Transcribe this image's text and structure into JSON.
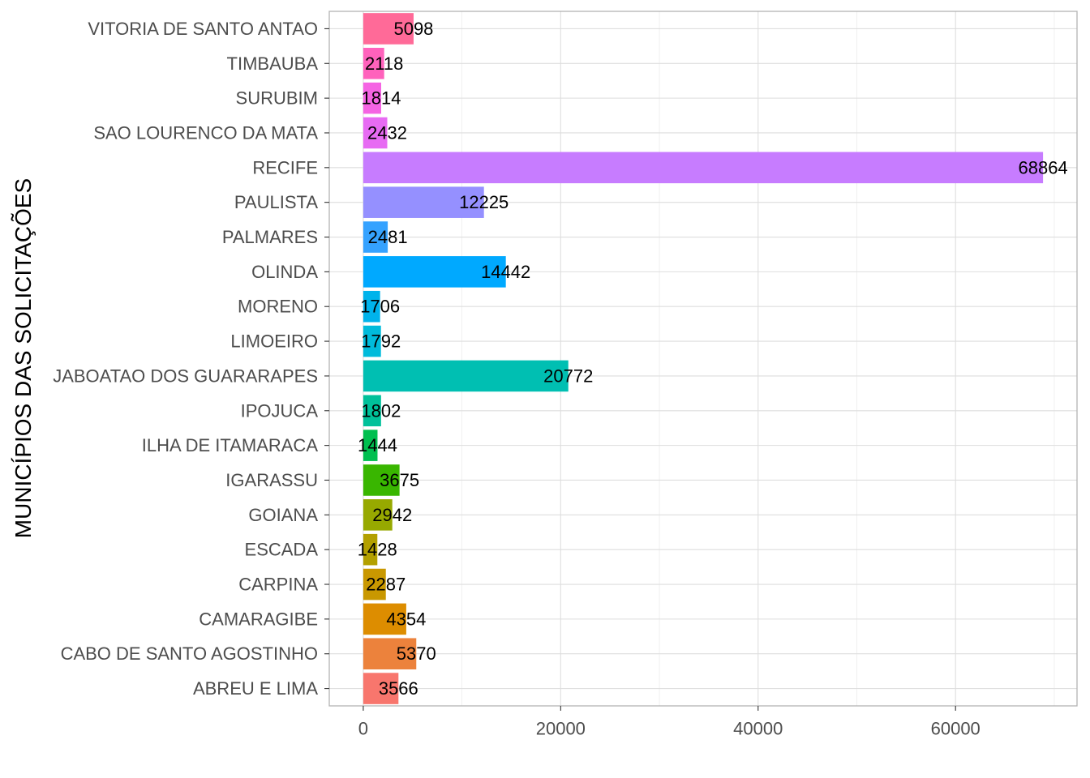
{
  "chart_data": {
    "type": "bar",
    "orientation": "horizontal",
    "title": "",
    "xlabel": "",
    "ylabel": "MUNICÍPIOS DAS SOLICITAÇÕES",
    "xlim": [
      -3443,
      72307
    ],
    "x_ticks": [
      0,
      20000,
      40000,
      60000
    ],
    "grid": true,
    "legend": "none",
    "categories": [
      "ABREU E LIMA",
      "CABO DE SANTO AGOSTINHO",
      "CAMARAGIBE",
      "CARPINA",
      "ESCADA",
      "GOIANA",
      "IGARASSU",
      "ILHA DE ITAMARACA",
      "IPOJUCA",
      "JABOATAO DOS GUARARAPES",
      "LIMOEIRO",
      "MORENO",
      "OLINDA",
      "PALMARES",
      "PAULISTA",
      "RECIFE",
      "SAO LOURENCO DA MATA",
      "SURUBIM",
      "TIMBAUBA",
      "VITORIA DE SANTO ANTAO"
    ],
    "values": [
      3566,
      5370,
      4354,
      2287,
      1428,
      2942,
      3675,
      1444,
      1802,
      20772,
      1792,
      1706,
      14442,
      2481,
      12225,
      68864,
      2432,
      1814,
      2118,
      5098
    ],
    "value_labels": [
      "3566",
      "5370",
      "4354",
      "2287",
      "1428",
      "2942",
      "3675",
      "1444",
      "1802",
      "20772",
      "1792",
      "1706",
      "14442",
      "2481",
      "12225",
      "68864",
      "2432",
      "1814",
      "2118",
      "5098"
    ],
    "colors": [
      "#F8766D",
      "#EC823C",
      "#DD8D00",
      "#C99800",
      "#B3A000",
      "#97A900",
      "#39B600",
      "#00BF4F",
      "#00C19A",
      "#00BFB2",
      "#00BBDB",
      "#00B3EB",
      "#00A9FF",
      "#35A2FF",
      "#9590FF",
      "#C77CFF",
      "#E76BF3",
      "#F564E3",
      "#FF62BC",
      "#FF6A98"
    ]
  }
}
